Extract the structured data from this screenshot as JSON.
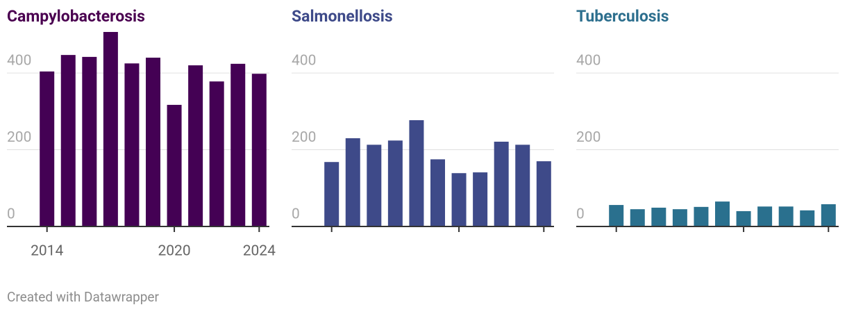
{
  "chart_data": [
    {
      "type": "bar",
      "title": "Campylobacterosis",
      "title_color": "#4a0050",
      "color": "#440154",
      "x": [
        2014,
        2015,
        2016,
        2017,
        2018,
        2019,
        2020,
        2021,
        2022,
        2023,
        2024
      ],
      "values": [
        404,
        447,
        442,
        507,
        425,
        440,
        317,
        420,
        378,
        424,
        398
      ],
      "xlim": [
        2013.65,
        2024.35
      ],
      "xticks": [
        2014,
        2020,
        2024
      ],
      "xtick_labels": true,
      "ylim": [
        0,
        507
      ],
      "yticks": [
        0,
        200,
        400
      ],
      "grid": true
    },
    {
      "type": "bar",
      "title": "Salmonellosis",
      "title_color": "#3e4a89",
      "color": "#3e4a89",
      "x": [
        2014,
        2015,
        2016,
        2017,
        2018,
        2019,
        2020,
        2021,
        2022,
        2023,
        2024
      ],
      "values": [
        168,
        230,
        213,
        224,
        277,
        175,
        139,
        141,
        221,
        213,
        170
      ],
      "xlim": [
        2013.65,
        2024.35
      ],
      "xticks": [
        2014,
        2020,
        2024
      ],
      "xtick_labels": false,
      "ylim": [
        0,
        507
      ],
      "yticks": [
        0,
        200,
        400
      ],
      "grid": true
    },
    {
      "type": "bar",
      "title": "Tuberculosis",
      "title_color": "#2d6f8e",
      "color": "#2a708e",
      "x": [
        2014,
        2015,
        2016,
        2017,
        2018,
        2019,
        2020,
        2021,
        2022,
        2023,
        2024
      ],
      "values": [
        56,
        45,
        49,
        45,
        51,
        65,
        40,
        52,
        52,
        42,
        58
      ],
      "xlim": [
        2013.65,
        2024.35
      ],
      "xticks": [
        2014,
        2020,
        2024
      ],
      "xtick_labels": false,
      "ylim": [
        0,
        507
      ],
      "yticks": [
        0,
        200,
        400
      ],
      "grid": true
    }
  ],
  "footer": "Created with Datawrapper"
}
